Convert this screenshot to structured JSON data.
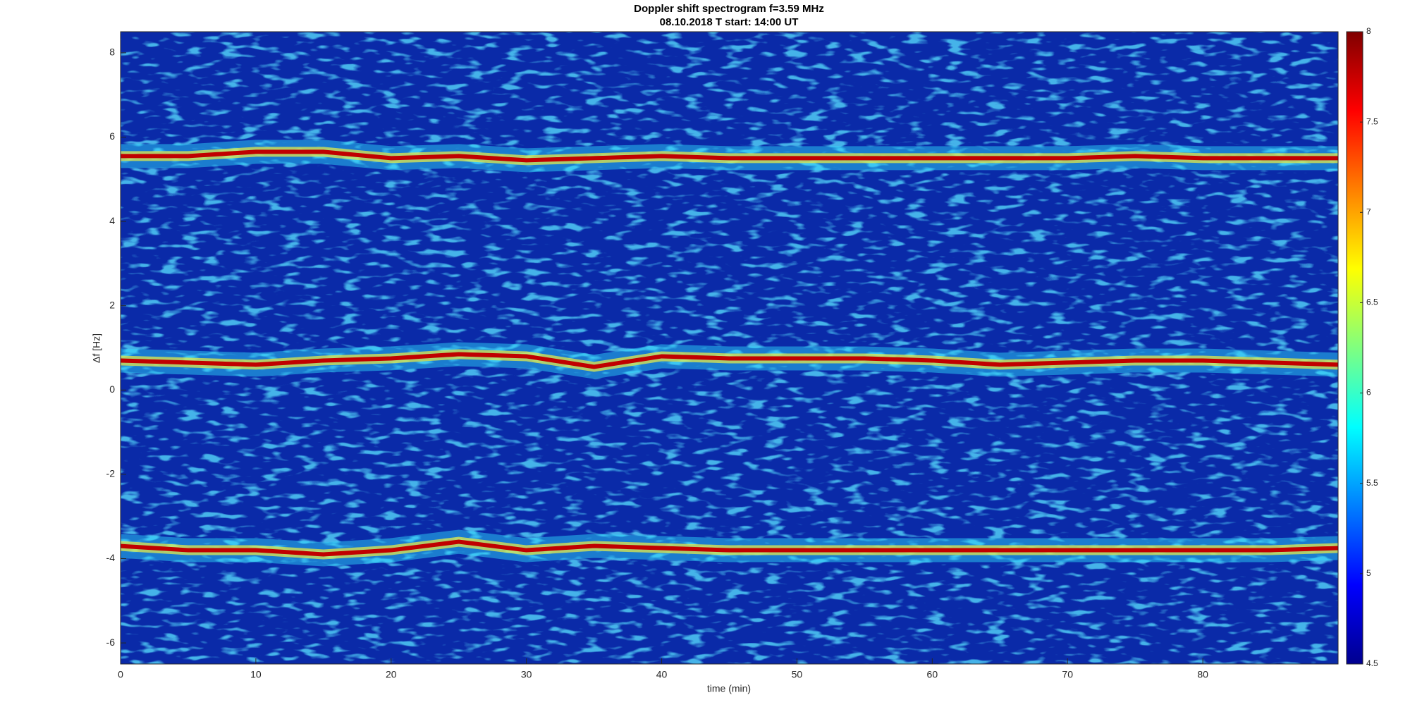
{
  "chart_data": {
    "type": "line",
    "title": "Doppler shift spectrogram f=3.59 MHz",
    "subtitle": "08.10.2018   T start: 14:00 UT",
    "x_label": "time (min)",
    "y_label": "Δf [Hz]",
    "x": [
      0,
      5,
      10,
      15,
      20,
      25,
      30,
      35,
      40,
      45,
      50,
      55,
      60,
      65,
      70,
      75,
      80,
      85,
      90
    ],
    "series": [
      {
        "color": "#c00000",
        "values": [
          5.55,
          5.55,
          5.65,
          5.65,
          5.5,
          5.55,
          5.45,
          5.5,
          5.55,
          5.5,
          5.5,
          5.5,
          5.5,
          5.5,
          5.5,
          5.55,
          5.5,
          5.5,
          5.5
        ]
      },
      {
        "color": "#c00000",
        "values": [
          0.7,
          0.65,
          0.6,
          0.7,
          0.75,
          0.85,
          0.8,
          0.55,
          0.8,
          0.75,
          0.75,
          0.75,
          0.7,
          0.6,
          0.65,
          0.7,
          0.7,
          0.65,
          0.6
        ]
      },
      {
        "color": "#c00000",
        "values": [
          -3.7,
          -3.8,
          -3.8,
          -3.9,
          -3.8,
          -3.6,
          -3.8,
          -3.7,
          -3.75,
          -3.8,
          -3.8,
          -3.8,
          -3.8,
          -3.8,
          -3.8,
          -3.8,
          -3.8,
          -3.8,
          -3.75
        ]
      }
    ],
    "xlim": [
      0,
      90
    ],
    "xticks": [
      0,
      10,
      20,
      30,
      40,
      50,
      60,
      70,
      80
    ],
    "ylim": [
      -6.5,
      8.5
    ],
    "yticks": [
      -6,
      -4,
      -2,
      0,
      2,
      4,
      6,
      8
    ],
    "background_color": "#0a2aa8",
    "colorbar_lim": [
      4.5,
      8
    ],
    "colorbar_ticks": [
      4.5,
      5,
      5.5,
      6,
      6.5,
      7,
      7.5,
      8
    ]
  }
}
